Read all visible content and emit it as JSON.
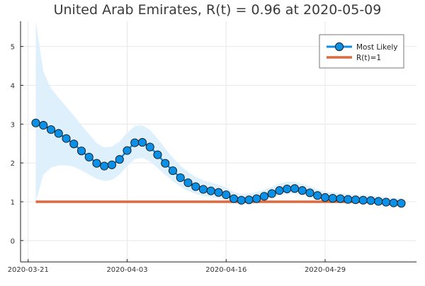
{
  "chart_data": {
    "type": "line",
    "title": "United Arab Emirates, R(t) = 0.96 at 2020-05-09",
    "xlabel": "",
    "ylabel": "",
    "xlim": [
      "2020-03-20",
      "2020-05-11"
    ],
    "ylim": [
      -0.55,
      5.65
    ],
    "grid": true,
    "legend_position": "top-right",
    "x_ticks": [
      "2020-03-21",
      "2020-04-03",
      "2020-04-16",
      "2020-04-29"
    ],
    "y_ticks": [
      0,
      1,
      2,
      3,
      4,
      5
    ],
    "colors": {
      "most_likely": "#0a90e6",
      "band": "#def0fc",
      "reference": "#e0683c",
      "marker_edge": "#1a1a1a",
      "axis": "#222222"
    },
    "series": [
      {
        "name": "Most Likely",
        "kind": "line-markers",
        "x": [
          "2020-03-22",
          "2020-03-23",
          "2020-03-24",
          "2020-03-25",
          "2020-03-26",
          "2020-03-27",
          "2020-03-28",
          "2020-03-29",
          "2020-03-30",
          "2020-03-31",
          "2020-04-01",
          "2020-04-02",
          "2020-04-03",
          "2020-04-04",
          "2020-04-05",
          "2020-04-06",
          "2020-04-07",
          "2020-04-08",
          "2020-04-09",
          "2020-04-10",
          "2020-04-11",
          "2020-04-12",
          "2020-04-13",
          "2020-04-14",
          "2020-04-15",
          "2020-04-16",
          "2020-04-17",
          "2020-04-18",
          "2020-04-19",
          "2020-04-20",
          "2020-04-21",
          "2020-04-22",
          "2020-04-23",
          "2020-04-24",
          "2020-04-25",
          "2020-04-26",
          "2020-04-27",
          "2020-04-28",
          "2020-04-29",
          "2020-04-30",
          "2020-05-01",
          "2020-05-02",
          "2020-05-03",
          "2020-05-04",
          "2020-05-05",
          "2020-05-06",
          "2020-05-07",
          "2020-05-08",
          "2020-05-09"
        ],
        "y": [
          3.03,
          2.97,
          2.86,
          2.76,
          2.63,
          2.49,
          2.31,
          2.15,
          1.99,
          1.92,
          1.95,
          2.09,
          2.32,
          2.52,
          2.53,
          2.41,
          2.21,
          1.99,
          1.8,
          1.62,
          1.49,
          1.39,
          1.32,
          1.28,
          1.24,
          1.18,
          1.08,
          1.04,
          1.05,
          1.08,
          1.14,
          1.21,
          1.29,
          1.33,
          1.34,
          1.29,
          1.23,
          1.16,
          1.11,
          1.09,
          1.08,
          1.06,
          1.05,
          1.04,
          1.03,
          1.01,
          0.99,
          0.97,
          0.96
        ]
      },
      {
        "name": "R(t)=1",
        "kind": "line",
        "x": [
          "2020-03-22",
          "2020-05-09"
        ],
        "y": [
          1,
          1
        ]
      }
    ],
    "band": {
      "x": [
        "2020-03-22",
        "2020-03-23",
        "2020-03-24",
        "2020-03-25",
        "2020-03-26",
        "2020-03-27",
        "2020-03-28",
        "2020-03-29",
        "2020-03-30",
        "2020-03-31",
        "2020-04-01",
        "2020-04-02",
        "2020-04-03",
        "2020-04-04",
        "2020-04-05",
        "2020-04-06",
        "2020-04-07",
        "2020-04-08",
        "2020-04-09",
        "2020-04-10",
        "2020-04-11",
        "2020-04-12",
        "2020-04-13",
        "2020-04-14",
        "2020-04-15",
        "2020-04-16",
        "2020-04-17",
        "2020-04-18",
        "2020-04-19",
        "2020-04-20",
        "2020-04-21",
        "2020-04-22",
        "2020-04-23",
        "2020-04-24",
        "2020-04-25",
        "2020-04-26",
        "2020-04-27",
        "2020-04-28",
        "2020-04-29",
        "2020-04-30",
        "2020-05-01",
        "2020-05-02",
        "2020-05-03",
        "2020-05-04",
        "2020-05-05",
        "2020-05-06",
        "2020-05-07",
        "2020-05-08",
        "2020-05-09"
      ],
      "lower": [
        1.0,
        1.7,
        1.88,
        1.94,
        1.94,
        1.9,
        1.81,
        1.7,
        1.59,
        1.53,
        1.56,
        1.7,
        1.92,
        2.1,
        2.13,
        2.04,
        1.87,
        1.69,
        1.53,
        1.39,
        1.28,
        1.2,
        1.15,
        1.12,
        1.09,
        1.04,
        0.96,
        0.92,
        0.93,
        0.97,
        1.02,
        1.09,
        1.16,
        1.2,
        1.21,
        1.17,
        1.11,
        1.05,
        1.01,
        0.99,
        0.98,
        0.97,
        0.96,
        0.95,
        0.94,
        0.92,
        0.9,
        0.88,
        0.87
      ],
      "upper": [
        5.75,
        4.35,
        3.92,
        3.68,
        3.45,
        3.22,
        2.97,
        2.74,
        2.51,
        2.4,
        2.42,
        2.55,
        2.77,
        2.95,
        2.97,
        2.85,
        2.63,
        2.37,
        2.14,
        1.93,
        1.77,
        1.64,
        1.55,
        1.49,
        1.44,
        1.37,
        1.25,
        1.2,
        1.21,
        1.25,
        1.31,
        1.39,
        1.47,
        1.51,
        1.52,
        1.46,
        1.4,
        1.32,
        1.26,
        1.24,
        1.22,
        1.2,
        1.18,
        1.17,
        1.16,
        1.14,
        1.12,
        1.1,
        1.09
      ]
    }
  }
}
